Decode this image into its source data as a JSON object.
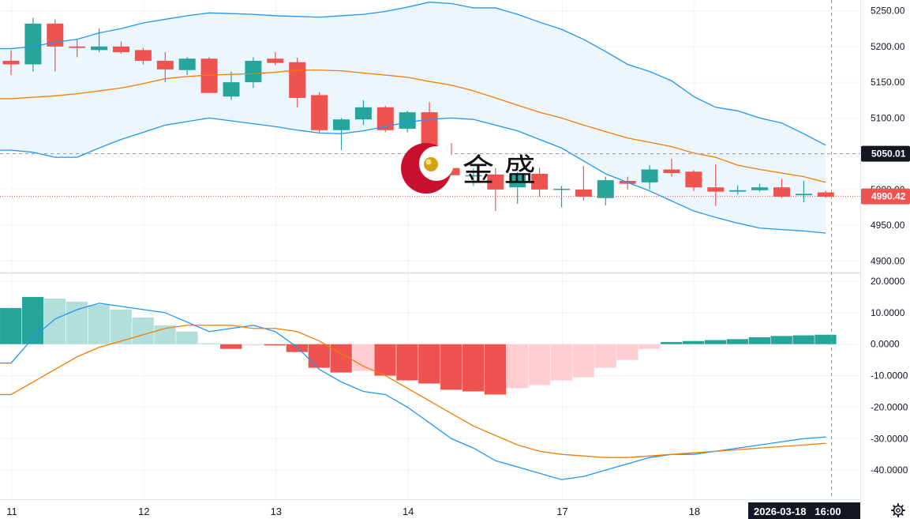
{
  "colors": {
    "up": "#26a69a",
    "down": "#ef5350",
    "up_light": "#b2dfdb",
    "down_light": "#ffcdd2",
    "band_line": "#2196f3",
    "basis_line": "#f57c00",
    "band_fill": "#e3f2fd",
    "grid": "#f0f3fa",
    "last_price_tag": "#ef5350",
    "crosshair_tag": "#131722"
  },
  "watermark": {
    "text": "金 盛"
  },
  "crosshair": {
    "price_label": "5050.01",
    "time_label": "2026-03-18   16:00"
  },
  "last_price": {
    "label": "4990.42"
  },
  "settings_icon": "gear-icon",
  "chart_data": [
    {
      "type": "candlestick",
      "overlays": [
        "Bollinger upper",
        "Bollinger basis",
        "Bollinger lower"
      ],
      "ylim": [
        4885,
        5265
      ],
      "y_ticks": [
        "4900.00",
        "4950.00",
        "5000.00",
        "5050.00",
        "5100.00",
        "5150.00",
        "5200.00",
        "5250.00"
      ],
      "x_tick_labels": [
        "11",
        "12",
        "13",
        "14",
        "17",
        "18"
      ],
      "candles": [
        {
          "o": 5180,
          "h": 5195,
          "l": 5160,
          "c": 5175
        },
        {
          "o": 5175,
          "h": 5240,
          "l": 5165,
          "c": 5232
        },
        {
          "o": 5232,
          "h": 5238,
          "l": 5165,
          "c": 5200
        },
        {
          "o": 5200,
          "h": 5210,
          "l": 5185,
          "c": 5198
        },
        {
          "o": 5195,
          "h": 5225,
          "l": 5192,
          "c": 5200
        },
        {
          "o": 5200,
          "h": 5207,
          "l": 5190,
          "c": 5192
        },
        {
          "o": 5195,
          "h": 5198,
          "l": 5175,
          "c": 5180
        },
        {
          "o": 5180,
          "h": 5192,
          "l": 5150,
          "c": 5168
        },
        {
          "o": 5167,
          "h": 5185,
          "l": 5160,
          "c": 5183
        },
        {
          "o": 5183,
          "h": 5185,
          "l": 5135,
          "c": 5135
        },
        {
          "o": 5130,
          "h": 5165,
          "l": 5125,
          "c": 5150
        },
        {
          "o": 5150,
          "h": 5185,
          "l": 5142,
          "c": 5180
        },
        {
          "o": 5183,
          "h": 5192,
          "l": 5174,
          "c": 5177
        },
        {
          "o": 5178,
          "h": 5184,
          "l": 5115,
          "c": 5128
        },
        {
          "o": 5132,
          "h": 5136,
          "l": 5080,
          "c": 5083
        },
        {
          "o": 5083,
          "h": 5100,
          "l": 5055,
          "c": 5098
        },
        {
          "o": 5098,
          "h": 5125,
          "l": 5090,
          "c": 5115
        },
        {
          "o": 5115,
          "h": 5117,
          "l": 5080,
          "c": 5083
        },
        {
          "o": 5085,
          "h": 5110,
          "l": 5080,
          "c": 5108
        },
        {
          "o": 5108,
          "h": 5122,
          "l": 5020,
          "c": 5033
        },
        {
          "o": 5030,
          "h": 5065,
          "l": 5020,
          "c": 5020
        },
        {
          "o": 5020,
          "h": 5030,
          "l": 5005,
          "c": 5020
        },
        {
          "o": 5021,
          "h": 5030,
          "l": 4970,
          "c": 5000
        },
        {
          "o": 5003,
          "h": 5025,
          "l": 4980,
          "c": 5022
        },
        {
          "o": 5022,
          "h": 5030,
          "l": 4990,
          "c": 5000
        },
        {
          "o": 5000,
          "h": 5005,
          "l": 4975,
          "c": 5001
        },
        {
          "o": 5000,
          "h": 5033,
          "l": 4985,
          "c": 4990
        },
        {
          "o": 4988,
          "h": 5018,
          "l": 4978,
          "c": 5013
        },
        {
          "o": 5012,
          "h": 5018,
          "l": 5000,
          "c": 5008
        },
        {
          "o": 5010,
          "h": 5034,
          "l": 5000,
          "c": 5028
        },
        {
          "o": 5028,
          "h": 5043,
          "l": 5018,
          "c": 5023
        },
        {
          "o": 5025,
          "h": 5027,
          "l": 4998,
          "c": 5003
        },
        {
          "o": 5003,
          "h": 5035,
          "l": 4977,
          "c": 4997
        },
        {
          "o": 4997,
          "h": 5006,
          "l": 4993,
          "c": 4999
        },
        {
          "o": 4999,
          "h": 5008,
          "l": 4997,
          "c": 5003
        },
        {
          "o": 5003,
          "h": 5015,
          "l": 4988,
          "c": 4990
        },
        {
          "o": 4992,
          "h": 5012,
          "l": 4982,
          "c": 4994
        },
        {
          "o": 4996,
          "h": 4998,
          "l": 4988,
          "c": 4990
        }
      ],
      "bb_upper": [
        5197,
        5200,
        5206,
        5210,
        5219,
        5225,
        5233,
        5238,
        5243,
        5247,
        5246,
        5245,
        5243,
        5242,
        5241,
        5243,
        5245,
        5249,
        5255,
        5262,
        5260,
        5254,
        5254,
        5245,
        5234,
        5224,
        5210,
        5193,
        5175,
        5165,
        5152,
        5130,
        5115,
        5110,
        5100,
        5093,
        5078,
        5062
      ],
      "bb_basis": [
        5127,
        5129,
        5131,
        5134,
        5138,
        5142,
        5148,
        5155,
        5158,
        5160,
        5161,
        5162,
        5164,
        5167,
        5167,
        5166,
        5163,
        5160,
        5157,
        5151,
        5146,
        5138,
        5128,
        5118,
        5108,
        5100,
        5090,
        5081,
        5072,
        5066,
        5060,
        5051,
        5045,
        5034,
        5028,
        5023,
        5018,
        5010
      ],
      "bb_lower": [
        5055,
        5052,
        5045,
        5045,
        5058,
        5070,
        5080,
        5090,
        5095,
        5100,
        5096,
        5092,
        5088,
        5083,
        5079,
        5078,
        5082,
        5088,
        5094,
        5098,
        5100,
        5098,
        5090,
        5082,
        5070,
        5058,
        5040,
        5022,
        5010,
        4998,
        4984,
        4970,
        4961,
        4953,
        4946,
        4944,
        4942,
        4939
      ]
    },
    {
      "type": "histogram",
      "overlays": [
        "MACD",
        "Signal"
      ],
      "ylim": [
        -49,
        22
      ],
      "y_ticks": [
        "-40.0000",
        "-30.0000",
        "-20.0000",
        "-10.0000",
        "0.0000",
        "10.0000",
        "20.0000"
      ],
      "histogram": [
        11.5,
        15.0,
        14.5,
        13.5,
        12.5,
        11.0,
        8.5,
        6.0,
        4.0,
        0.3,
        -1.5,
        -0.2,
        -0.4,
        -2.5,
        -7.5,
        -9.0,
        -8.5,
        -10.0,
        -11.5,
        -12.5,
        -14.5,
        -15.0,
        -16.0,
        -14.0,
        -13.0,
        -11.5,
        -10.5,
        -7.5,
        -5.0,
        -1.5,
        0.7,
        1.0,
        1.3,
        1.6,
        2.2,
        2.6,
        2.8,
        3.0
      ],
      "macd": [
        -6,
        2,
        8,
        11,
        13,
        12,
        11,
        10,
        7,
        4,
        5,
        6,
        4,
        -1,
        -8,
        -12,
        -15,
        -16,
        -20,
        -25,
        -30,
        -33,
        -37,
        -39,
        -41,
        -43,
        -42,
        -40,
        -38,
        -36,
        -35,
        -35,
        -34,
        -33,
        -32,
        -31,
        -30,
        -29.5
      ],
      "signal": [
        -16,
        -12,
        -8,
        -4,
        -1,
        1,
        3,
        5,
        6,
        6,
        6,
        5,
        5,
        4,
        1,
        -3,
        -7,
        -10,
        -14,
        -18,
        -22,
        -26,
        -29,
        -32,
        -34,
        -35,
        -35.5,
        -36,
        -36,
        -35.5,
        -35,
        -34.5,
        -34,
        -33.5,
        -33,
        -32.5,
        -32,
        -31.5
      ],
      "macd_hist_colors": "bright when the histogram moves away from zero, light when it moves toward zero"
    }
  ]
}
